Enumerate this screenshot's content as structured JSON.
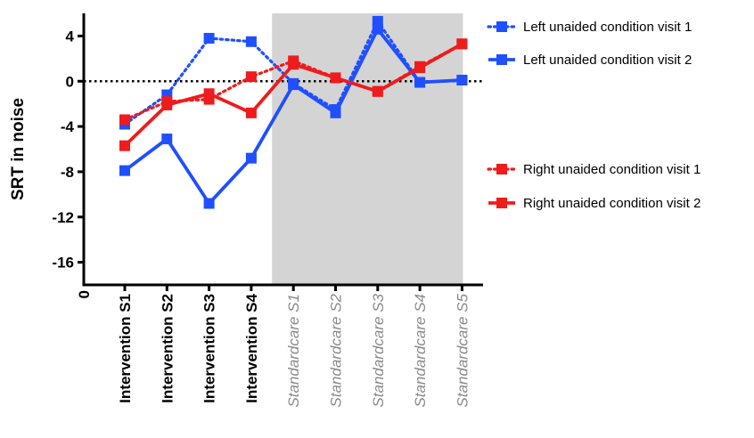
{
  "colors": {
    "left": "#1f4fff",
    "right": "#ee1c1c",
    "shade": "#d4d4d4",
    "axis": "#000000",
    "italic_label": "#8a8a8a"
  },
  "chart_data": {
    "type": "line",
    "xlabel": "",
    "ylabel": "SRT in noise",
    "ylim": [
      -18,
      6
    ],
    "yticks": [
      4,
      0,
      -4,
      -8,
      -12,
      -16
    ],
    "x_origin_label": "0",
    "categories": [
      "Intervention S1",
      "Intervention S2",
      "Intervention S3",
      "Intervention S4",
      "Standardcare S1",
      "Standardcare S2",
      "Standardcare S3",
      "Standardcare S4",
      "Standardcare S5"
    ],
    "shaded_region": {
      "from_category": "Standardcare S1",
      "to_category": "Standardcare S5"
    },
    "reference_line": {
      "y": 0,
      "style": "dotted"
    },
    "series": [
      {
        "name": "Left unaided condition visit 1",
        "color": "left",
        "dash": "dotted",
        "values": [
          -3.8,
          -1.2,
          3.8,
          3.5,
          -0.2,
          -2.5,
          5.3,
          -0.1,
          0.1
        ]
      },
      {
        "name": "Left unaided condition visit 2",
        "color": "left",
        "dash": "solid",
        "values": [
          -7.9,
          -5.1,
          -10.8,
          -6.8,
          -0.3,
          -2.8,
          4.6,
          -0.1,
          0.1
        ]
      },
      {
        "name": "Right unaided condition visit 1",
        "color": "right",
        "dash": "dotted",
        "values": [
          -3.4,
          -1.8,
          -1.6,
          0.4,
          1.8,
          0.3,
          -0.9,
          1.3,
          3.3
        ]
      },
      {
        "name": "Right unaided condition visit 2",
        "color": "right",
        "dash": "solid",
        "values": [
          -5.7,
          -2.1,
          -1.1,
          -2.8,
          1.5,
          0.3,
          -0.9,
          1.2,
          3.3
        ]
      }
    ],
    "legend": {
      "placement": "right"
    }
  }
}
